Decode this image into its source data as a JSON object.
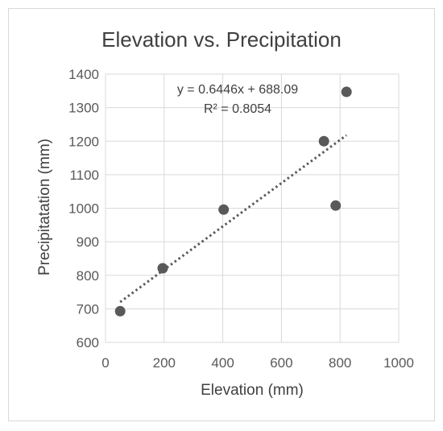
{
  "chart_data": {
    "type": "scatter",
    "title": "Elevation vs. Precipitation",
    "xlabel": "Elevation (mm)",
    "ylabel": "Precipitatation (mm)",
    "xlim": [
      0,
      1000
    ],
    "ylim": [
      600,
      1400
    ],
    "x_ticks": [
      0,
      200,
      400,
      600,
      800,
      1000
    ],
    "y_ticks": [
      600,
      700,
      800,
      900,
      1000,
      1100,
      1200,
      1300,
      1400
    ],
    "x_tick_labels": [
      "0",
      "200",
      "400",
      "600",
      "800",
      "1000"
    ],
    "y_tick_labels": [
      "600",
      "700",
      "800",
      "900",
      "1000",
      "1100",
      "1200",
      "1300",
      "1400"
    ],
    "grid": true,
    "legend": "none",
    "series": [
      {
        "points": [
          {
            "x": 50,
            "y": 693
          },
          {
            "x": 195,
            "y": 821
          },
          {
            "x": 403,
            "y": 996
          },
          {
            "x": 745,
            "y": 1200
          },
          {
            "x": 785,
            "y": 1008
          },
          {
            "x": 822,
            "y": 1347
          }
        ]
      }
    ],
    "trendline": {
      "type": "linear",
      "slope": 0.6446,
      "intercept": 688.09,
      "x_range": [
        50,
        822
      ],
      "equation_label": "y = 0.6446x + 688.09",
      "r2_label": "R² = 0.8054"
    },
    "colors": {
      "marker": "#595959",
      "trendline": "#595959",
      "grid": "#d9d9d9"
    }
  }
}
